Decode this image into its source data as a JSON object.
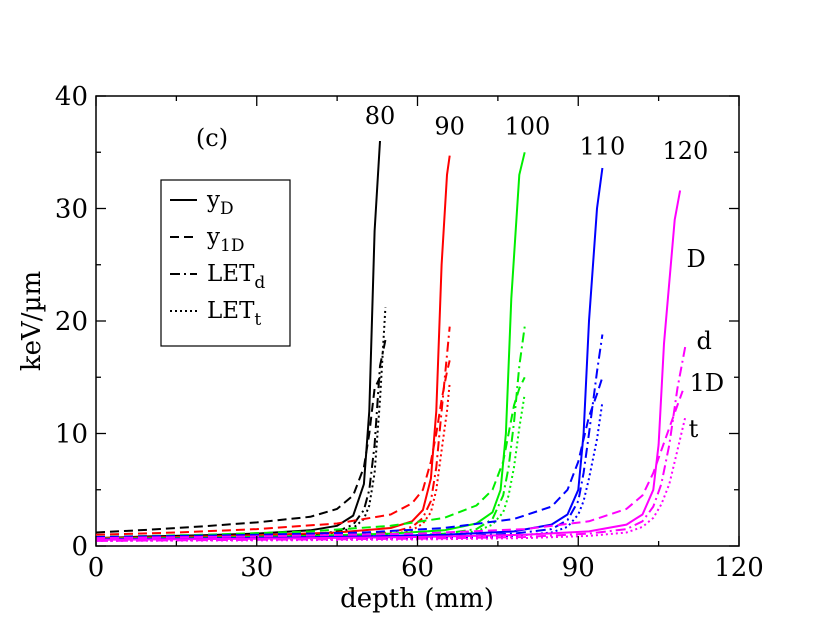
{
  "chart_data": {
    "type": "line",
    "panel_label": "(c)",
    "xlabel": "depth (mm)",
    "ylabel": "keV/µm",
    "xlim": [
      0,
      120
    ],
    "ylim": [
      0,
      40
    ],
    "xticks": [
      0,
      30,
      60,
      90,
      120
    ],
    "yticks": [
      0,
      10,
      20,
      30,
      40
    ],
    "xtick_labels": [
      "0",
      "30",
      "60",
      "90",
      "120"
    ],
    "ytick_labels": [
      "0",
      "10",
      "20",
      "30",
      "40"
    ],
    "grid": false,
    "legend": {
      "placement": "upper-left",
      "entries": [
        {
          "style": "solid",
          "base": "y",
          "sub": "D"
        },
        {
          "style": "dashed",
          "base": "y",
          "sub": "1D"
        },
        {
          "style": "dashdot",
          "base": "LET",
          "sub": "d"
        },
        {
          "style": "dotted",
          "base": "LET",
          "sub": "t"
        }
      ]
    },
    "energy_labels": [
      {
        "text": "80",
        "x": 53,
        "y": 37.5
      },
      {
        "text": "90",
        "x": 66,
        "y": 36.6
      },
      {
        "text": "100",
        "x": 80.5,
        "y": 36.6
      },
      {
        "text": "110",
        "x": 94.5,
        "y": 34.8
      },
      {
        "text": "120",
        "x": 110,
        "y": 34.4
      }
    ],
    "curve_labels": [
      {
        "text": "D",
        "x": 112,
        "y": 24.8
      },
      {
        "text": "d",
        "x": 113.5,
        "y": 17.5
      },
      {
        "text": "1D",
        "x": 114,
        "y": 13.8
      },
      {
        "text": "t",
        "x": 111.5,
        "y": 9.7
      }
    ],
    "series": [
      {
        "energy": "80",
        "color": "#000000",
        "curves": [
          {
            "name": "y_D",
            "style": "solid",
            "x": [
              0,
              10,
              20,
              30,
              40,
              45,
              48,
              50,
              51,
              52,
              53
            ],
            "y": [
              0.7,
              0.85,
              0.95,
              1.1,
              1.4,
              1.8,
              2.7,
              5.5,
              12,
              28,
              36
            ]
          },
          {
            "name": "y_1D",
            "style": "dashed",
            "x": [
              0,
              10,
              20,
              30,
              40,
              45,
              48,
              50,
              51,
              52,
              53
            ],
            "y": [
              1.2,
              1.45,
              1.75,
              2.1,
              2.6,
              3.3,
              4.5,
              7,
              10,
              14,
              15
            ]
          },
          {
            "name": "LET_d",
            "style": "dashdot",
            "x": [
              0,
              10,
              20,
              30,
              40,
              45,
              48,
              50,
              51,
              52,
              53,
              54
            ],
            "y": [
              0.5,
              0.6,
              0.7,
              0.8,
              1,
              1.3,
              1.9,
              3.2,
              5,
              9,
              16,
              18.3
            ]
          },
          {
            "name": "LET_t",
            "style": "dotted",
            "x": [
              0,
              10,
              20,
              30,
              40,
              45,
              48,
              50,
              51,
              52,
              53,
              54
            ],
            "y": [
              0.5,
              0.55,
              0.6,
              0.7,
              0.9,
              1.2,
              1.6,
              2.4,
              3.6,
              6.5,
              13,
              21.2
            ]
          }
        ]
      },
      {
        "energy": "90",
        "color": "#ff0000",
        "curves": [
          {
            "name": "y_D",
            "style": "solid",
            "x": [
              0,
              15,
              30,
              45,
              55,
              59,
              61,
              62.5,
              63.5,
              64.5,
              65.5,
              66
            ],
            "y": [
              0.7,
              0.8,
              0.95,
              1.2,
              1.6,
              2.2,
              3.2,
              6,
              12,
              25,
              33,
              34.7
            ]
          },
          {
            "name": "y_1D",
            "style": "dashed",
            "x": [
              0,
              15,
              30,
              45,
              55,
              59,
              61,
              62.5,
              63.5,
              64.5,
              65.5,
              66
            ],
            "y": [
              1,
              1.2,
              1.5,
              2,
              2.8,
              3.8,
              5,
              7.5,
              10,
              13,
              15.5,
              16.5
            ]
          },
          {
            "name": "LET_d",
            "style": "dashdot",
            "x": [
              0,
              15,
              30,
              45,
              55,
              59,
              61,
              62.5,
              63.5,
              64.5,
              65.5,
              66
            ],
            "y": [
              0.5,
              0.6,
              0.7,
              0.9,
              1.2,
              1.7,
              2.5,
              4,
              7,
              12,
              17,
              19.5
            ]
          },
          {
            "name": "LET_t",
            "style": "dotted",
            "x": [
              0,
              15,
              30,
              45,
              55,
              59,
              61,
              62.5,
              63.5,
              64.5,
              65.5,
              66
            ],
            "y": [
              0.5,
              0.55,
              0.65,
              0.8,
              1,
              1.4,
              2,
              3,
              5,
              8.5,
              12,
              14.5
            ]
          }
        ]
      },
      {
        "energy": "100",
        "color": "#00ee00",
        "curves": [
          {
            "name": "y_D",
            "style": "solid",
            "x": [
              0,
              20,
              40,
              55,
              65,
              71,
              74,
              75.5,
              76.5,
              77.5,
              79,
              80
            ],
            "y": [
              0.65,
              0.75,
              0.9,
              1.1,
              1.4,
              2,
              3,
              5,
              10,
              22,
              33,
              35
            ]
          },
          {
            "name": "y_1D",
            "style": "dashed",
            "x": [
              0,
              20,
              40,
              55,
              65,
              71,
              74,
              76,
              77,
              78,
              79,
              80
            ],
            "y": [
              0.8,
              1,
              1.3,
              1.8,
              2.5,
              3.6,
              5,
              7.5,
              10,
              12.5,
              14,
              15
            ]
          },
          {
            "name": "LET_d",
            "style": "dashdot",
            "x": [
              0,
              20,
              40,
              55,
              65,
              71,
              74,
              76,
              77,
              78,
              79,
              80
            ],
            "y": [
              0.5,
              0.6,
              0.7,
              0.85,
              1.1,
              1.5,
              2.4,
              4.5,
              7,
              11,
              16,
              19.5
            ]
          },
          {
            "name": "LET_t",
            "style": "dotted",
            "x": [
              0,
              20,
              40,
              55,
              65,
              71,
              74,
              76,
              77,
              78,
              79,
              80
            ],
            "y": [
              0.5,
              0.55,
              0.6,
              0.75,
              0.95,
              1.3,
              1.9,
              3,
              4.5,
              7,
              10.5,
              13.5
            ]
          }
        ]
      },
      {
        "energy": "110",
        "color": "#0000ff",
        "curves": [
          {
            "name": "y_D",
            "style": "solid",
            "x": [
              0,
              25,
              50,
              65,
              78,
              85,
              88,
              90,
              91,
              92,
              93.5,
              94.5
            ],
            "y": [
              0.6,
              0.7,
              0.85,
              1,
              1.3,
              1.9,
              2.8,
              5,
              10,
              20,
              30,
              33.6
            ]
          },
          {
            "name": "y_1D",
            "style": "dashed",
            "x": [
              0,
              25,
              50,
              65,
              78,
              85,
              88,
              90,
              91,
              92,
              93.5,
              94.5
            ],
            "y": [
              0.8,
              0.95,
              1.2,
              1.6,
              2.4,
              3.5,
              5,
              7.5,
              9.5,
              11.5,
              13.5,
              15
            ]
          },
          {
            "name": "LET_d",
            "style": "dashdot",
            "x": [
              0,
              25,
              50,
              65,
              78,
              85,
              88,
              90,
              91,
              92,
              93.5,
              94.5
            ],
            "y": [
              0.5,
              0.58,
              0.68,
              0.82,
              1.1,
              1.5,
              2.3,
              4,
              6.5,
              10,
              15.5,
              18.8
            ]
          },
          {
            "name": "LET_t",
            "style": "dotted",
            "x": [
              0,
              25,
              50,
              65,
              78,
              85,
              88,
              90,
              91,
              92,
              93.5,
              94.5
            ],
            "y": [
              0.5,
              0.53,
              0.6,
              0.7,
              0.9,
              1.2,
              1.7,
              2.8,
              4,
              6,
              9.5,
              12.8
            ]
          }
        ]
      },
      {
        "energy": "120",
        "color": "#ff00ff",
        "curves": [
          {
            "name": "y_D",
            "style": "solid",
            "x": [
              0,
              30,
              60,
              80,
              92,
              99,
              102,
              104,
              105,
              106,
              108,
              109
            ],
            "y": [
              0.55,
              0.65,
              0.8,
              1,
              1.3,
              1.9,
              2.8,
              5,
              9,
              18,
              29,
              31.6
            ]
          },
          {
            "name": "y_1D",
            "style": "dashed",
            "x": [
              0,
              30,
              60,
              80,
              92,
              99,
              102,
              104,
              105.5,
              107,
              108.5,
              109.5
            ],
            "y": [
              0.7,
              0.85,
              1.1,
              1.5,
              2.2,
              3.3,
              4.5,
              6.5,
              8.5,
              10.5,
              12.5,
              13.8
            ]
          },
          {
            "name": "LET_d",
            "style": "dashdot",
            "x": [
              0,
              30,
              60,
              80,
              92,
              99,
              102,
              104,
              105.5,
              107,
              108.5,
              110
            ],
            "y": [
              0.45,
              0.55,
              0.65,
              0.8,
              1.1,
              1.5,
              2.2,
              3.5,
              5.5,
              9,
              14,
              17.8
            ]
          },
          {
            "name": "LET_t",
            "style": "dotted",
            "x": [
              0,
              30,
              60,
              80,
              92,
              99,
              102,
              104,
              105.5,
              107,
              108.5,
              110
            ],
            "y": [
              0.45,
              0.5,
              0.58,
              0.7,
              0.9,
              1.2,
              1.7,
              2.5,
              3.7,
              5.5,
              8.5,
              11.5
            ]
          }
        ]
      }
    ]
  }
}
